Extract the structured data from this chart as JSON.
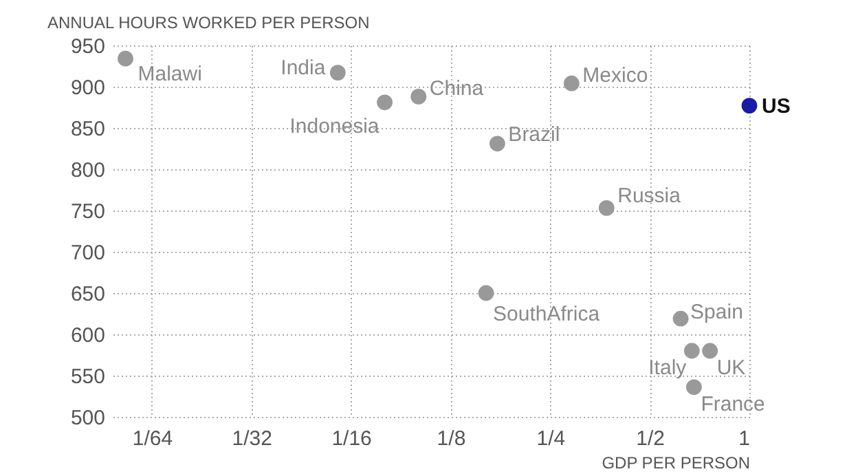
{
  "chart_data": {
    "type": "scatter",
    "xlabel": "GDP PER PERSON",
    "ylabel": "ANNUAL HOURS WORKED PER PERSON",
    "log": "x",
    "grid": true,
    "marker": "circle",
    "xlim": [
      0.0119,
      1
    ],
    "xticks": [
      {
        "value": 0.015625,
        "label": "1/64"
      },
      {
        "value": 0.03125,
        "label": "1/32"
      },
      {
        "value": 0.0625,
        "label": "1/16"
      },
      {
        "value": 0.125,
        "label": "1/8"
      },
      {
        "value": 0.25,
        "label": "1/4"
      },
      {
        "value": 0.5,
        "label": "1/2"
      },
      1
    ],
    "ylim": [
      500,
      950
    ],
    "yticks": [
      500,
      550,
      600,
      650,
      700,
      750,
      800,
      850,
      900,
      950
    ],
    "series": [
      {
        "color": "#999999",
        "x": [
          0.013,
          0.057,
          0.079,
          0.1,
          0.173,
          0.16,
          0.29,
          0.37,
          0.62,
          0.67,
          0.76,
          0.68
        ],
        "values": [
          934,
          917,
          881,
          888,
          831,
          650,
          904,
          753,
          619,
          580,
          580,
          536
        ]
      },
      {
        "name": "US",
        "color": "#1a1aa8",
        "x": [
          1
        ],
        "values": [
          877
        ]
      }
    ],
    "annotations": [
      {
        "text": "Malawi",
        "x": 0.013,
        "y": 934
      },
      {
        "text": "India",
        "x": 0.057,
        "y": 917
      },
      {
        "text": "Indonesia",
        "x": 0.079,
        "y": 881
      },
      {
        "text": "China",
        "x": 0.1,
        "y": 888
      },
      {
        "text": "Brazil",
        "x": 0.173,
        "y": 831
      },
      {
        "text": "SouthAfrica",
        "x": 0.16,
        "y": 650
      },
      {
        "text": "Mexico",
        "x": 0.29,
        "y": 904
      },
      {
        "text": "Russia",
        "x": 0.37,
        "y": 753
      },
      {
        "text": "Spain",
        "x": 0.62,
        "y": 619
      },
      {
        "text": "Italy",
        "x": 0.67,
        "y": 580
      },
      {
        "text": "UK",
        "x": 0.76,
        "y": 580
      },
      {
        "text": "France",
        "x": 0.68,
        "y": 536
      }
    ]
  }
}
